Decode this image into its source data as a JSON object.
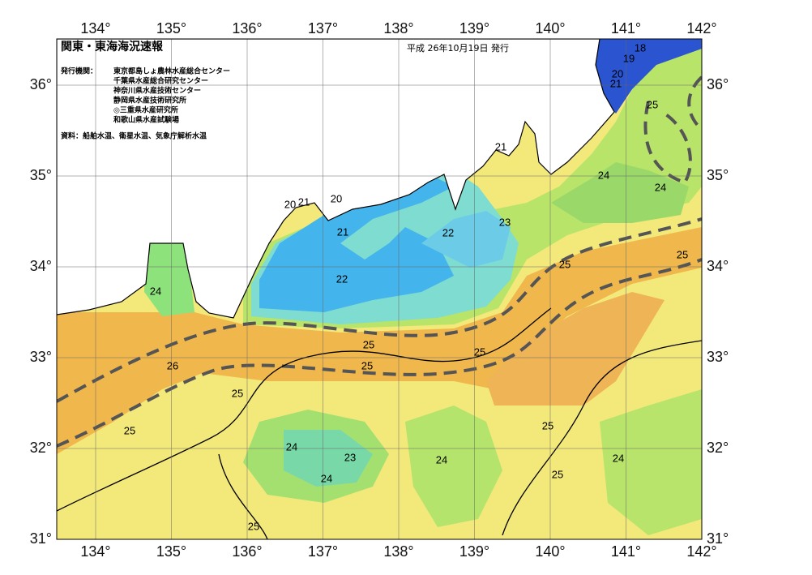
{
  "header": {
    "title": "関東・東海海況速報",
    "issued": "平成 26年10月19日 発行",
    "institutions_label": "発行機関：",
    "institutions": [
      "東京都島しょ農林水産総合センター",
      "千葉県水産総合研究センター",
      "神奈川県水産技術センター",
      "静岡県水産技術研究所",
      "◎三重県水産研究所",
      "和歌山県水産試験場"
    ],
    "source": "資料：船舶水温、衛星水温、気象庁解析水温"
  },
  "map": {
    "longitude_labels": [
      "134°",
      "135°",
      "136°",
      "137°",
      "138°",
      "139°",
      "140°",
      "141°",
      "142°"
    ],
    "latitude_labels": [
      "31°",
      "32°",
      "33°",
      "34°",
      "35°",
      "36°"
    ],
    "contour_labels": [
      "18",
      "19",
      "20",
      "21",
      "25",
      "24",
      "24",
      "25",
      "25",
      "21",
      "23",
      "22",
      "20",
      "21",
      "20",
      "21",
      "22",
      "24",
      "26",
      "25",
      "25",
      "25",
      "25",
      "25",
      "24",
      "23",
      "24",
      "24",
      "25",
      "25",
      "24",
      "25"
    ]
  }
}
